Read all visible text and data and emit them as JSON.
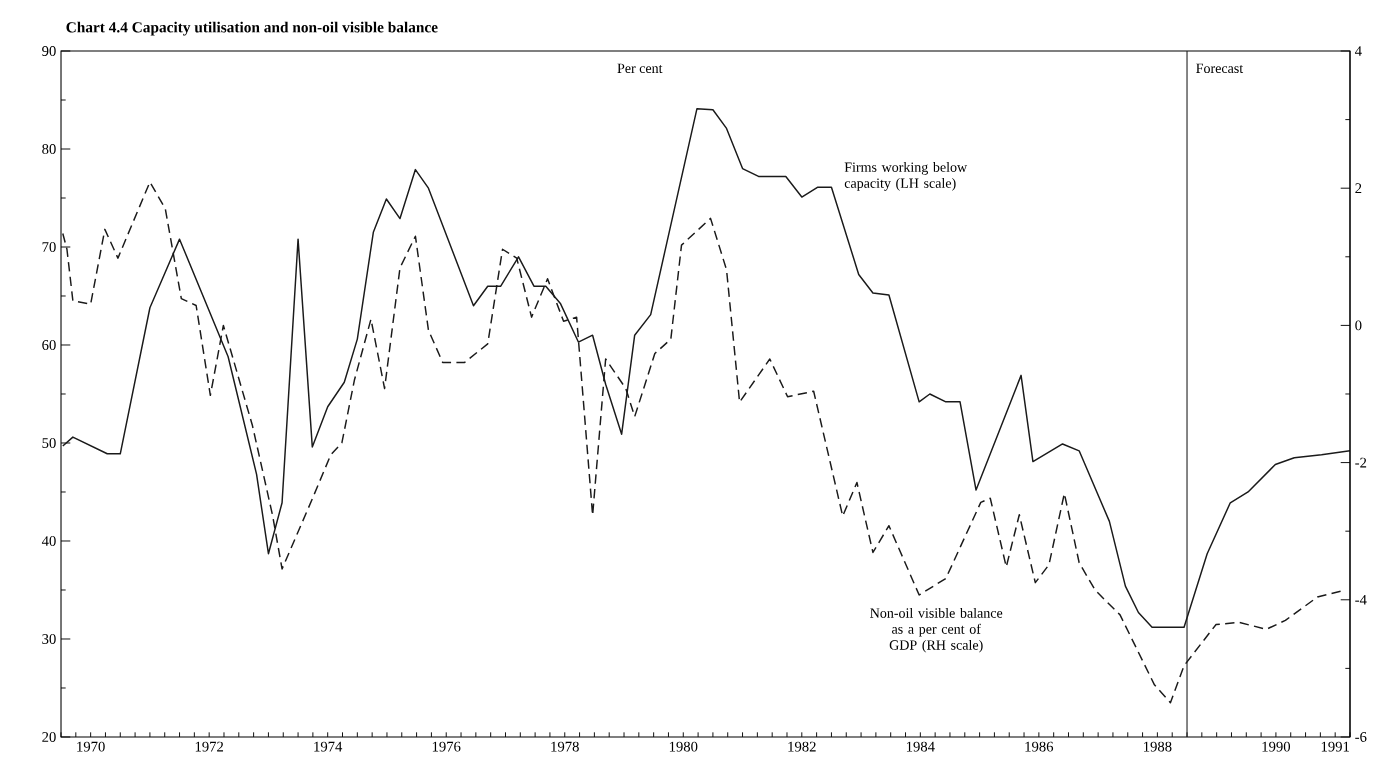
{
  "chart_data": {
    "type": "line",
    "title": "Chart 4.4 Capacity utilisation and non-oil visible balance",
    "annotations": [
      "Per cent"
    ],
    "xlim": [
      1970,
      1991.75
    ],
    "xticks": [
      {
        "value": 1970.5,
        "label": "1970"
      },
      {
        "value": 1971,
        "label": null
      },
      {
        "value": 1972,
        "label": null
      },
      {
        "value": 1972.5,
        "label": "1972"
      },
      {
        "value": 1973,
        "label": null
      },
      {
        "value": 1974,
        "label": null
      },
      {
        "value": 1974.5,
        "label": "1974"
      },
      {
        "value": 1975,
        "label": null
      },
      {
        "value": 1976,
        "label": null
      },
      {
        "value": 1976.5,
        "label": "1976"
      },
      {
        "value": 1977,
        "label": null
      },
      {
        "value": 1978,
        "label": null
      },
      {
        "value": 1978.5,
        "label": "1978"
      },
      {
        "value": 1979,
        "label": null
      },
      {
        "value": 1980,
        "label": null
      },
      {
        "value": 1980.5,
        "label": "1980"
      },
      {
        "value": 1981,
        "label": null
      },
      {
        "value": 1982,
        "label": null
      },
      {
        "value": 1982.5,
        "label": "1982"
      },
      {
        "value": 1983,
        "label": null
      },
      {
        "value": 1984,
        "label": null
      },
      {
        "value": 1984.5,
        "label": "1984"
      },
      {
        "value": 1985,
        "label": null
      },
      {
        "value": 1986,
        "label": null
      },
      {
        "value": 1986.5,
        "label": "1986"
      },
      {
        "value": 1987,
        "label": null
      },
      {
        "value": 1988,
        "label": null
      },
      {
        "value": 1988.5,
        "label": "1988"
      },
      {
        "value": 1989,
        "label": null
      },
      {
        "value": 1990,
        "label": null
      },
      {
        "value": 1990.5,
        "label": "1990"
      },
      {
        "value": 1991,
        "label": null
      },
      {
        "value": 1991.5,
        "label": "1991"
      }
    ],
    "ylim": [
      20,
      90
    ],
    "yticks": [
      20,
      30,
      40,
      50,
      60,
      70,
      80,
      90
    ],
    "y2lim": [
      -6,
      4
    ],
    "y2ticks": [
      -6,
      -4,
      -2,
      0,
      2,
      4
    ],
    "ref_lines": [
      {
        "axis": "x",
        "value": 1989,
        "label": "Forecast",
        "color": "#1a1a1a",
        "line_style": "solid"
      }
    ],
    "marker": "none",
    "series": [
      {
        "name": "Firms working below capacity (LH scale)",
        "color": "#1a1a1a",
        "line_style": "solid",
        "x": [
          1970.03,
          1970.2,
          1970.78,
          1971.0,
          1971.5,
          1972.0,
          1972.82,
          1973.3,
          1973.5,
          1973.73,
          1974.0,
          1974.24,
          1974.5,
          1974.78,
          1975.0,
          1975.27,
          1975.49,
          1975.72,
          1975.98,
          1976.2,
          1976.96,
          1977.2,
          1977.42,
          1977.72,
          1977.98,
          1978.18,
          1978.43,
          1978.73,
          1978.97,
          1979.19,
          1979.46,
          1979.68,
          1979.95,
          1980.73,
          1981.0,
          1981.23,
          1981.5,
          1981.77,
          1982.23,
          1982.5,
          1982.77,
          1983.0,
          1983.46,
          1983.7,
          1983.97,
          1984.48,
          1984.66,
          1984.93,
          1985.17,
          1985.44,
          1986.2,
          1986.4,
          1986.9,
          1987.18,
          1987.69,
          1987.96,
          1988.18,
          1988.41,
          1988.95,
          1989.34,
          1989.73,
          1990.03,
          1990.49,
          1990.81,
          1991.27,
          1991.75
        ],
        "values": [
          49.7,
          50.6,
          48.9,
          48.9,
          63.8,
          70.8,
          58.8,
          46.8,
          38.7,
          43.9,
          70.8,
          49.6,
          53.7,
          56.2,
          60.6,
          71.5,
          74.9,
          72.9,
          77.9,
          76.0,
          64.0,
          66.0,
          66.0,
          69.0,
          66.0,
          66.0,
          64.2,
          60.3,
          61.0,
          56.0,
          50.9,
          61.0,
          63.1,
          84.1,
          84.0,
          82.1,
          78.0,
          77.2,
          77.2,
          75.1,
          76.1,
          76.1,
          67.2,
          65.3,
          65.1,
          54.2,
          55.0,
          54.2,
          54.2,
          45.2,
          56.9,
          48.1,
          49.9,
          49.2,
          42.0,
          35.4,
          32.7,
          31.2,
          31.2,
          38.7,
          43.9,
          45.0,
          47.8,
          48.5,
          48.8,
          49.2
        ]
      },
      {
        "name": "Non-oil visible balance as a per cent of GDP (RH scale)",
        "color": "#1a1a1a",
        "line_style": "dashed",
        "axis": "y2",
        "x": [
          1970.03,
          1970.1,
          1970.2,
          1970.5,
          1970.74,
          1970.96,
          1971.5,
          1971.76,
          1972.03,
          1972.28,
          1972.52,
          1972.74,
          1973.23,
          1973.57,
          1973.73,
          1973.96,
          1974.24,
          1974.55,
          1974.74,
          1974.95,
          1975.23,
          1975.46,
          1975.72,
          1975.98,
          1976.2,
          1976.44,
          1976.81,
          1977.2,
          1977.45,
          1977.69,
          1977.94,
          1978.21,
          1978.48,
          1978.7,
          1978.97,
          1979.19,
          1979.53,
          1979.68,
          1980.02,
          1980.29,
          1980.47,
          1980.96,
          1981.23,
          1981.45,
          1981.96,
          1982.26,
          1982.7,
          1983.19,
          1983.43,
          1983.7,
          1983.97,
          1984.48,
          1984.93,
          1985.52,
          1985.68,
          1985.95,
          1986.17,
          1986.44,
          1986.67,
          1986.93,
          1987.18,
          1987.45,
          1987.87,
          1988.45,
          1988.72,
          1988.95,
          1989.49,
          1989.88,
          1990.34,
          1990.66,
          1991.2,
          1991.66
        ],
        "values": [
          1.34,
          1.11,
          0.36,
          0.31,
          1.4,
          0.98,
          2.09,
          1.7,
          0.39,
          0.29,
          -1.02,
          0.0,
          -1.46,
          -2.77,
          -3.55,
          -3.09,
          -2.53,
          -1.89,
          -1.71,
          -0.8,
          0.09,
          -0.92,
          0.84,
          1.3,
          -0.07,
          -0.54,
          -0.54,
          -0.27,
          1.11,
          0.98,
          0.12,
          0.68,
          0.06,
          0.12,
          -2.77,
          -0.49,
          -0.92,
          -1.33,
          -0.41,
          -0.2,
          1.17,
          1.56,
          0.81,
          -1.12,
          -0.49,
          -1.04,
          -0.96,
          -2.78,
          -2.29,
          -3.31,
          -2.92,
          -3.93,
          -3.69,
          -2.58,
          -2.52,
          -3.52,
          -2.76,
          -3.75,
          -3.49,
          -2.45,
          -3.46,
          -3.86,
          -4.22,
          -5.24,
          -5.5,
          -4.96,
          -4.36,
          -4.33,
          -4.43,
          -4.3,
          -3.96,
          -3.86
        ]
      }
    ]
  }
}
